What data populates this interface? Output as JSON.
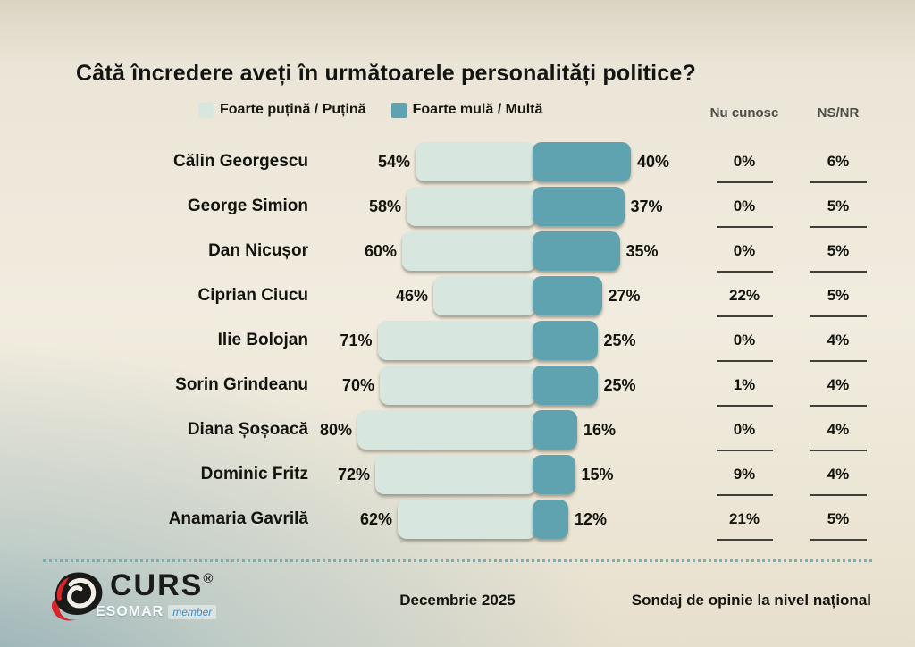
{
  "title": "Câtă încredere aveți în următoarele personalități politice?",
  "legend": [
    {
      "label": "Foarte puțină / Puțină",
      "color": "#d7e7e0"
    },
    {
      "label": "Foarte mulă / Multă",
      "color": "#5fa3b0"
    }
  ],
  "columns": [
    {
      "label": "Nu cunosc"
    },
    {
      "label": "NS/NR"
    }
  ],
  "chart_data": {
    "type": "bar",
    "orientation": "horizontal-diverging",
    "title": "Câtă încredere aveți în următoarele personalități politice?",
    "categories": [
      "Călin Georgescu",
      "George Simion",
      "Dan Nicușor",
      "Ciprian Ciucu",
      "Ilie Bolojan",
      "Sorin Grindeanu",
      "Diana Șoșoacă",
      "Dominic Fritz",
      "Anamaria Gavrilă"
    ],
    "series": [
      {
        "name": "Foarte puțină / Puțină",
        "color": "#d7e7e0",
        "values": [
          54,
          58,
          60,
          46,
          71,
          70,
          80,
          72,
          62
        ]
      },
      {
        "name": "Foarte mulă / Multă",
        "color": "#5fa3b0",
        "values": [
          40,
          37,
          35,
          27,
          25,
          25,
          16,
          15,
          12
        ]
      }
    ],
    "extra_columns": [
      {
        "label": "Nu cunosc",
        "values": [
          0,
          0,
          0,
          22,
          0,
          1,
          0,
          9,
          21
        ]
      },
      {
        "label": "NS/NR",
        "values": [
          6,
          5,
          5,
          5,
          4,
          4,
          4,
          4,
          5
        ]
      }
    ],
    "value_suffix": "%",
    "xlim": [
      0,
      100
    ],
    "legend_position": "top",
    "grid": false
  },
  "footer": {
    "date": "Decembrie 2025",
    "note": "Sondaj de opinie la nivel național",
    "logo": {
      "name": "CURS",
      "registered": "®",
      "sub": "ESOMAR",
      "sub_badge": "member"
    }
  },
  "colors": {
    "low_bar": "#d7e7e0",
    "high_bar": "#5fa3b0",
    "background_cream": "#efe9dc",
    "background_blue": "#aec5c9",
    "separator_dotted": "#79aeb5",
    "header_gray": "#4e4d49",
    "text": "#14140f"
  }
}
